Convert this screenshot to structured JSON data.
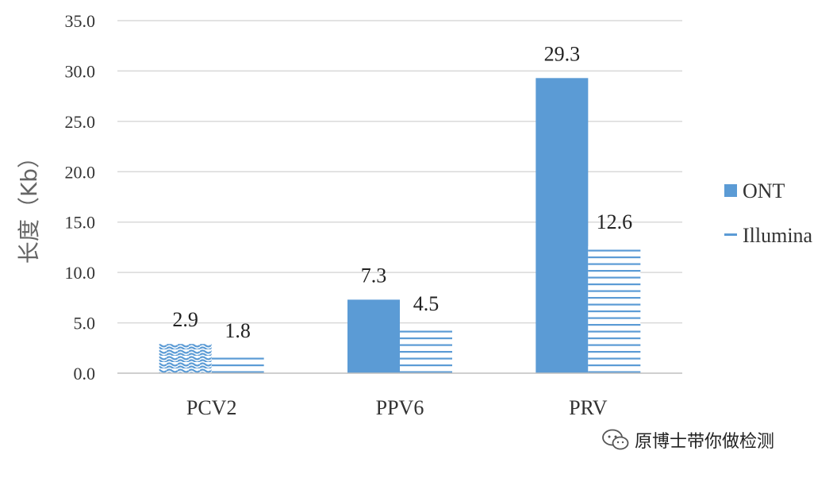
{
  "chart_data": {
    "type": "bar",
    "categories": [
      "PCV2",
      "PPV6",
      "PRV"
    ],
    "series": [
      {
        "name": "ONT",
        "values": [
          2.9,
          7.3,
          29.3
        ],
        "color": "#5b9bd5"
      },
      {
        "name": "Illumina",
        "values": [
          1.8,
          4.5,
          12.6
        ],
        "color": "#5b9bd5"
      }
    ],
    "data_labels": [
      [
        "2.9",
        "7.3",
        "29.3"
      ],
      [
        "1.8",
        "4.5",
        "12.6"
      ]
    ],
    "ylabel": "长度（Kb）",
    "xlabel": "",
    "ylim": [
      0,
      35
    ],
    "yticks": [
      "0.0",
      "5.0",
      "10.0",
      "15.0",
      "20.0",
      "25.0",
      "30.0",
      "35.0"
    ],
    "grid": true,
    "legend_position": "right"
  },
  "watermark": {
    "text": "原博士带你做检测",
    "icon": "wechat-icon"
  }
}
